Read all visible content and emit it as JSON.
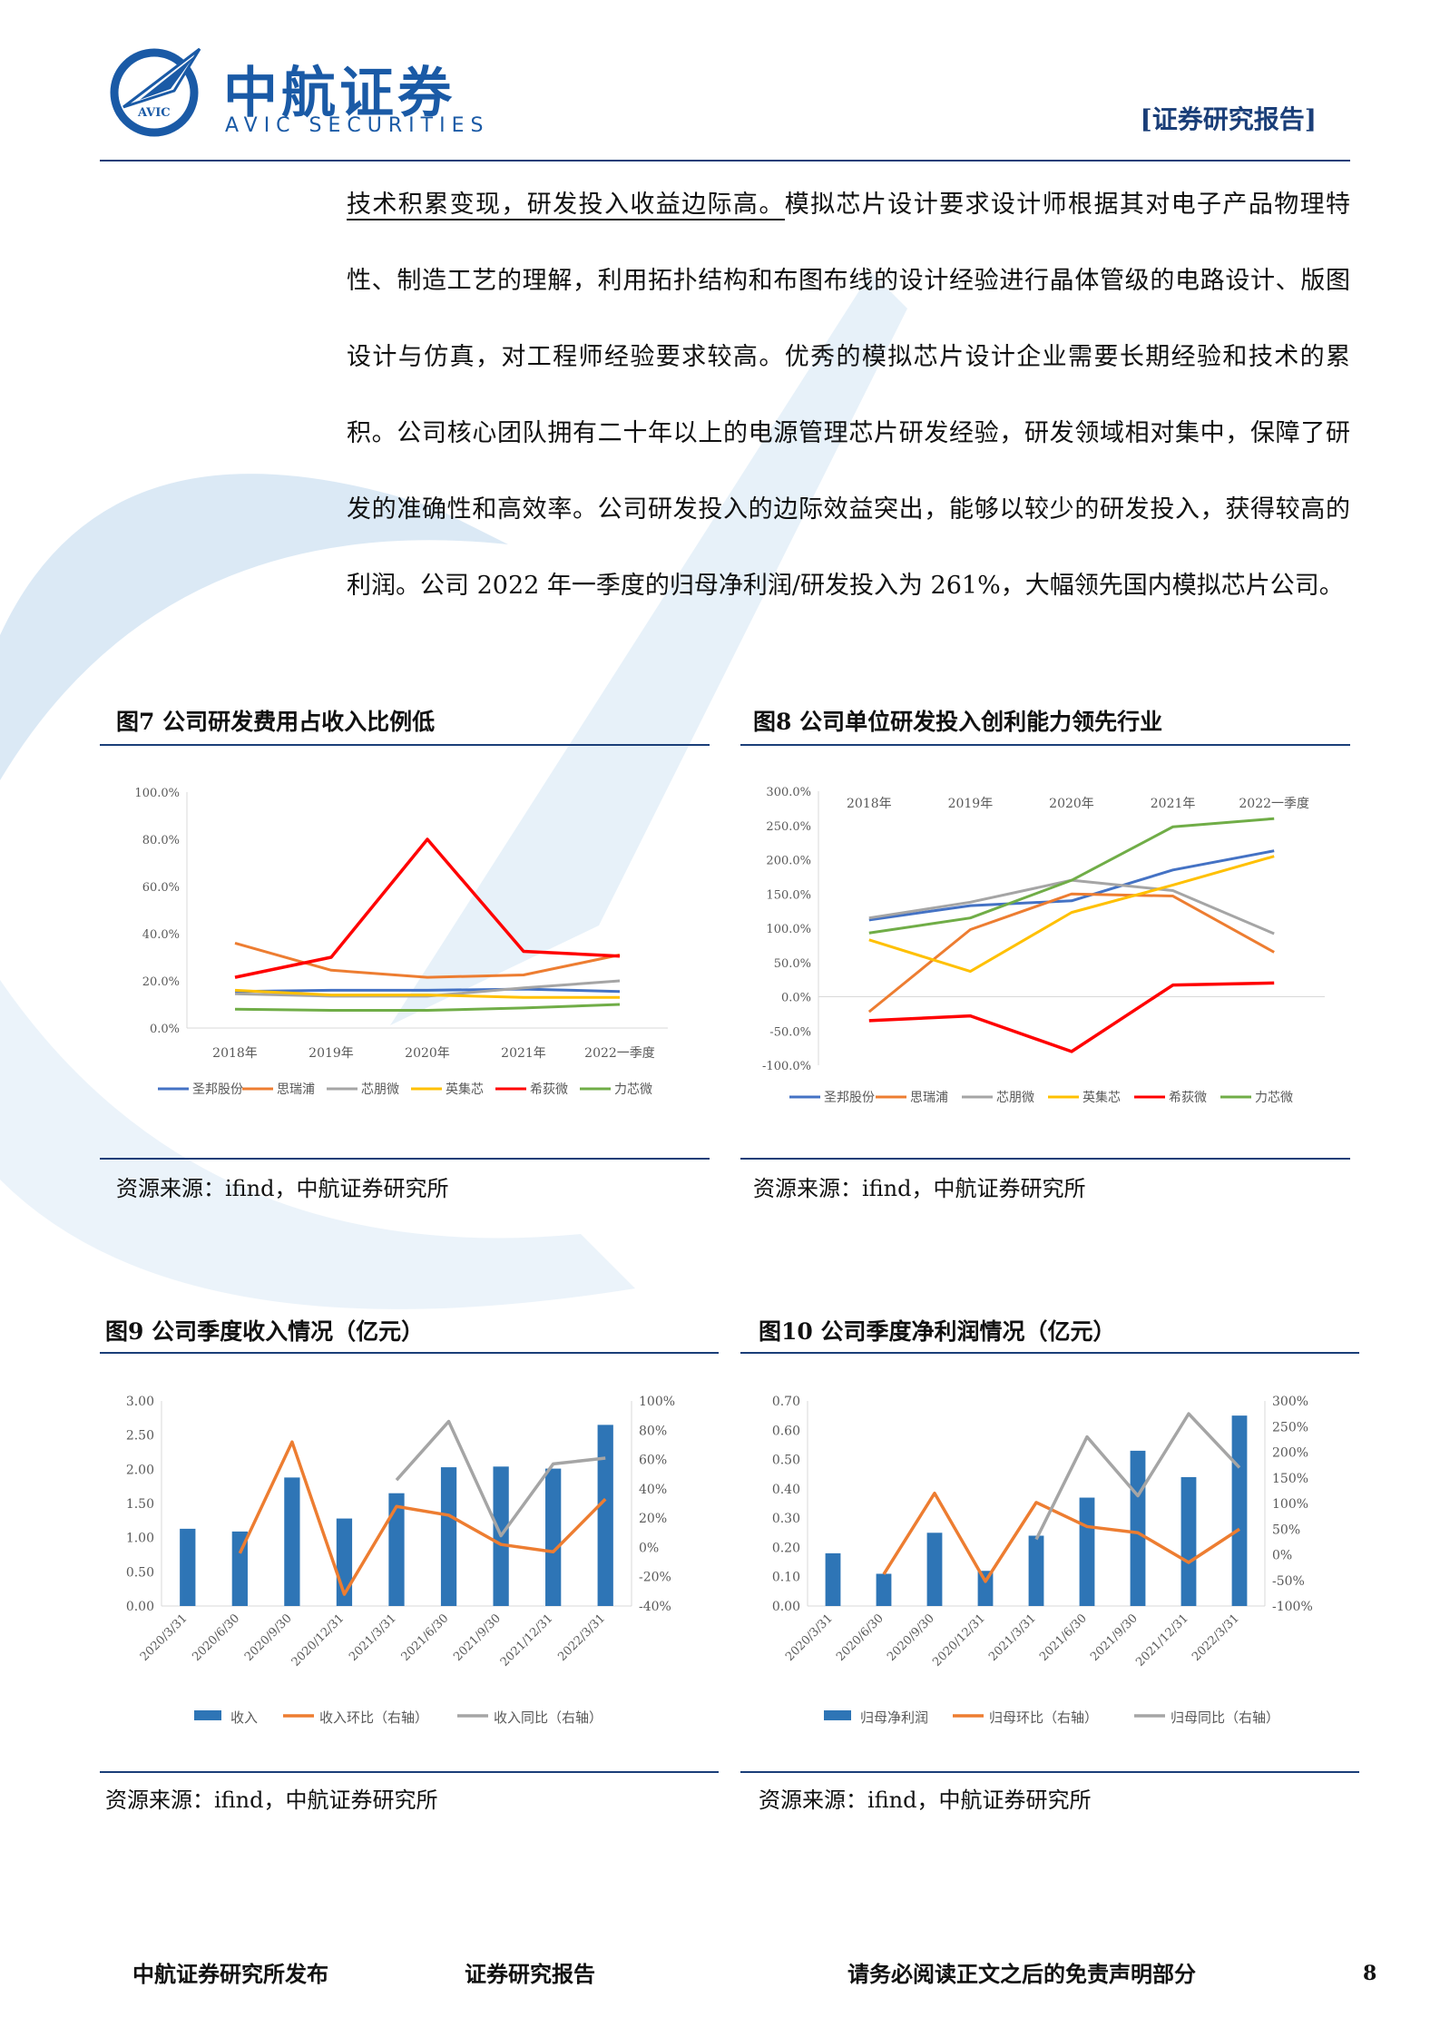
{
  "header": {
    "logo_cn": "中航证券",
    "logo_en": "AVIC SECURITIES",
    "logo_badge": "AVIC",
    "report_tag": "[证券研究报告]"
  },
  "body": {
    "highlight": "技术积累变现，研发投入收益边际高。",
    "paragraph": "模拟芯片设计要求设计师根据其对电子产品物理特性、制造工艺的理解，利用拓扑结构和布图布线的设计经验进行晶体管级的电路设计、版图设计与仿真，对工程师经验要求较高。优秀的模拟芯片设计企业需要长期经验和技术的累积。公司核心团队拥有二十年以上的电源管理芯片研发经验，研发领域相对集中，保障了研发的准确性和高效率。公司研发投入的边际效益突出，能够以较少的研发投入，获得较高的利润。公司 2022 年一季度的归母净利润/研发投入为 261%，大幅领先国内模拟芯片公司。"
  },
  "figures": {
    "fig7": {
      "title": "图7  公司研发费用占收入比例低",
      "source": "资源来源：ifind，中航证券研究所"
    },
    "fig8": {
      "title": "图8  公司单位研发投入创利能力领先行业",
      "source": "资源来源：ifind，中航证券研究所"
    },
    "fig9": {
      "title": "图9  公司季度收入情况（亿元）",
      "source": "资源来源：ifind，中航证券研究所"
    },
    "fig10": {
      "title": "图10  公司季度净利润情况（亿元）",
      "source": "资源来源：ifind，中航证券研究所"
    }
  },
  "chart_data": [
    {
      "id": "fig7",
      "type": "line",
      "categories": [
        "2018年",
        "2019年",
        "2020年",
        "2021年",
        "2022一季度"
      ],
      "ylim": [
        0,
        100
      ],
      "yticks": [
        "0.0%",
        "20.0%",
        "40.0%",
        "60.0%",
        "80.0%",
        "100.0%"
      ],
      "grid": false,
      "legend": "bottom",
      "series": [
        {
          "name": "圣邦股份",
          "color": "#4472c4",
          "values": [
            15.5,
            16,
            16,
            16.5,
            15.5
          ]
        },
        {
          "name": "思瑞浦",
          "color": "#ed7d31",
          "values": [
            36,
            24.5,
            21.5,
            22.5,
            31
          ]
        },
        {
          "name": "芯朋微",
          "color": "#a5a5a5",
          "values": [
            14.5,
            13.5,
            13.5,
            17,
            20
          ]
        },
        {
          "name": "英集芯",
          "color": "#ffc000",
          "values": [
            16,
            14,
            14,
            13,
            13
          ]
        },
        {
          "name": "希荻微",
          "color": "#ff0000",
          "values": [
            21.5,
            30,
            80,
            32.5,
            30.5
          ]
        },
        {
          "name": "力芯微",
          "color": "#70ad47",
          "values": [
            8,
            7.5,
            7.5,
            8.5,
            10
          ]
        }
      ]
    },
    {
      "id": "fig8",
      "type": "line",
      "categories": [
        "2018年",
        "2019年",
        "2020年",
        "2021年",
        "2022一季度"
      ],
      "ylim": [
        -100,
        300
      ],
      "yticks": [
        "-100.0%",
        "-50.0%",
        "0.0%",
        "50.0%",
        "100.0%",
        "150.0%",
        "200.0%",
        "250.0%",
        "300.0%"
      ],
      "grid": false,
      "legend": "bottom",
      "series": [
        {
          "name": "圣邦股份",
          "color": "#4472c4",
          "values": [
            112,
            133,
            140,
            185,
            213
          ]
        },
        {
          "name": "思瑞浦",
          "color": "#ed7d31",
          "values": [
            -22,
            98,
            150,
            147,
            65
          ]
        },
        {
          "name": "芯朋微",
          "color": "#a5a5a5",
          "values": [
            115,
            138,
            170,
            155,
            92
          ]
        },
        {
          "name": "英集芯",
          "color": "#ffc000",
          "values": [
            83,
            37,
            123,
            163,
            205
          ]
        },
        {
          "name": "希荻微",
          "color": "#ff0000",
          "values": [
            -35,
            -28,
            -80,
            17,
            20
          ]
        },
        {
          "name": "力芯微",
          "color": "#70ad47",
          "values": [
            93,
            115,
            170,
            248,
            260
          ]
        }
      ]
    },
    {
      "id": "fig9",
      "type": "bar",
      "categories": [
        "2020/3/31",
        "2020/6/30",
        "2020/9/30",
        "2020/12/31",
        "2021/3/31",
        "2021/6/30",
        "2021/9/30",
        "2021/12/31",
        "2022/3/31"
      ],
      "ylim": [
        0,
        3
      ],
      "yticks": [
        "0.00",
        "0.50",
        "1.00",
        "1.50",
        "2.00",
        "2.50",
        "3.00"
      ],
      "y2lim": [
        -40,
        100
      ],
      "y2ticks": [
        "-40%",
        "-20%",
        "0%",
        "20%",
        "40%",
        "60%",
        "80%",
        "100%"
      ],
      "legend": "bottom",
      "series": [
        {
          "name": "收入",
          "color": "#2e75b6",
          "axis": "left",
          "kind": "bar",
          "values": [
            1.13,
            1.09,
            1.88,
            1.28,
            1.65,
            2.03,
            2.04,
            2.01,
            2.65
          ]
        },
        {
          "name": "收入环比（右轴）",
          "color": "#ed7d31",
          "axis": "right",
          "kind": "line",
          "values": [
            null,
            -4,
            72,
            -32,
            28,
            22,
            2,
            -3,
            33
          ]
        },
        {
          "name": "收入同比（右轴）",
          "color": "#a5a5a5",
          "axis": "right",
          "kind": "line",
          "values": [
            null,
            null,
            null,
            null,
            46,
            86,
            8,
            57,
            61
          ]
        }
      ]
    },
    {
      "id": "fig10",
      "type": "bar",
      "categories": [
        "2020/3/31",
        "2020/6/30",
        "2020/9/30",
        "2020/12/31",
        "2021/3/31",
        "2021/6/30",
        "2021/9/30",
        "2021/12/31",
        "2022/3/31"
      ],
      "ylim": [
        0,
        0.7
      ],
      "yticks": [
        "0.00",
        "0.10",
        "0.20",
        "0.30",
        "0.40",
        "0.50",
        "0.60",
        "0.70"
      ],
      "y2lim": [
        -100,
        300
      ],
      "y2ticks": [
        "-100%",
        "-50%",
        "0%",
        "50%",
        "100%",
        "150%",
        "200%",
        "250%",
        "300%"
      ],
      "legend": "bottom",
      "series": [
        {
          "name": "归母净利润",
          "color": "#2e75b6",
          "axis": "left",
          "kind": "bar",
          "values": [
            0.18,
            0.11,
            0.25,
            0.12,
            0.24,
            0.37,
            0.53,
            0.44,
            0.65
          ]
        },
        {
          "name": "归母环比（右轴）",
          "color": "#ed7d31",
          "axis": "right",
          "kind": "line",
          "values": [
            null,
            -38,
            120,
            -52,
            102,
            55,
            43,
            -15,
            50
          ]
        },
        {
          "name": "归母同比（右轴）",
          "color": "#a5a5a5",
          "axis": "right",
          "kind": "line",
          "values": [
            null,
            null,
            null,
            null,
            30,
            230,
            115,
            275,
            170
          ]
        }
      ]
    }
  ],
  "footer": {
    "left": "中航证券研究所发布",
    "middle": "证券研究报告",
    "right": "请务必阅读正文之后的免责声明部分",
    "page": "8"
  }
}
